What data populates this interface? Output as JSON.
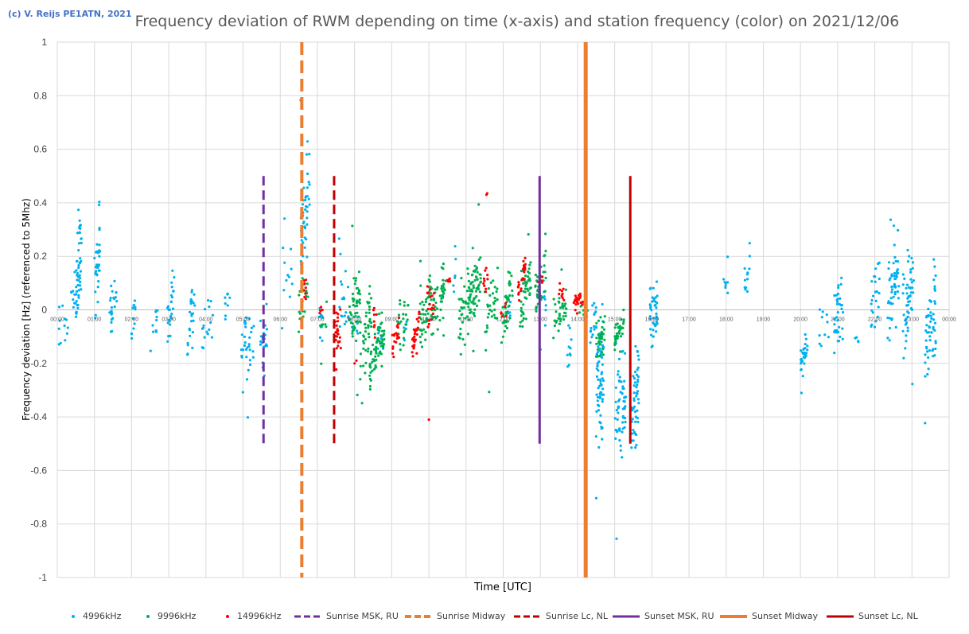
{
  "credit": "(c) V. Reijs  PE1ATN, 2021",
  "chart_data": {
    "type": "scatter",
    "title": "Frequency deviation of RWM depending on time (x-axis) and station frequency (color) on 2021/12/06",
    "xlabel": "Time [UTC]",
    "ylabel": "Frequency deviation [Hz] (referenced to 5Mhz)",
    "xlim": [
      0,
      24
    ],
    "ylim": [
      -1,
      1
    ],
    "x_ticks": [
      "00:00",
      "01:00",
      "02:00",
      "03:00",
      "04:00",
      "05:00",
      "06:00",
      "07:00",
      "08:00",
      "09:00",
      "10:00",
      "11:00",
      "12:00",
      "13:00",
      "14:00",
      "15:00",
      "16:00",
      "17:00",
      "18:00",
      "19:00",
      "20:00",
      "21:00",
      "22:00",
      "23:00",
      "00:00"
    ],
    "y_ticks": [
      "-1",
      "-0.8",
      "-0.6",
      "-0.4",
      "-0.2",
      "0",
      "0.2",
      "0.4",
      "0.6",
      "0.8",
      "1"
    ],
    "y_tick_values": [
      -1,
      -0.8,
      -0.6,
      -0.4,
      -0.2,
      0,
      0.2,
      0.4,
      0.6,
      0.8,
      1
    ],
    "grid": true,
    "legend_position": "bottom",
    "series": [
      {
        "name": "4996kHz",
        "color": "#00b0f0",
        "kind": "points",
        "clusters": [
          [
            0.0,
            0.6,
            0.0,
            0.1,
            24,
            0.08
          ],
          [
            0.5,
            0.65,
            0.15,
            0.15,
            48,
            0.09
          ],
          [
            1.0,
            1.15,
            0.15,
            0.15,
            36,
            0.09
          ],
          [
            1.4,
            1.6,
            0.02,
            0.08,
            22,
            0.05
          ],
          [
            2.0,
            2.1,
            -0.03,
            0.06,
            12,
            0.05
          ],
          [
            2.5,
            2.7,
            -0.06,
            0.06,
            10,
            0.03
          ],
          [
            2.95,
            3.15,
            0.0,
            0.12,
            26,
            0.12
          ],
          [
            3.5,
            3.7,
            -0.03,
            0.1,
            24,
            0.12
          ],
          [
            3.9,
            4.2,
            -0.05,
            0.07,
            16,
            0.05
          ],
          [
            4.5,
            4.65,
            0.02,
            0.05,
            8,
            0.03
          ],
          [
            4.95,
            5.3,
            -0.12,
            0.1,
            34,
            0.0
          ],
          [
            5.45,
            5.65,
            -0.1,
            0.1,
            22,
            0.0
          ],
          [
            6.05,
            6.35,
            0.15,
            0.15,
            12,
            0.0
          ],
          [
            6.55,
            6.8,
            0.35,
            0.2,
            48,
            0.12
          ],
          [
            7.05,
            7.15,
            -0.05,
            0.1,
            10,
            0.0
          ],
          [
            7.55,
            7.85,
            0.0,
            0.15,
            20,
            0.02
          ],
          [
            7.9,
            8.1,
            -0.08,
            0.05,
            6,
            0.0
          ],
          [
            8.6,
            8.9,
            -0.12,
            0.06,
            8,
            0.0
          ],
          [
            9.3,
            9.4,
            -0.06,
            0.04,
            4,
            0.02
          ],
          [
            10.6,
            10.75,
            0.1,
            0.15,
            6,
            0.08
          ],
          [
            12.1,
            12.2,
            0.0,
            0.05,
            6,
            0.0
          ],
          [
            13.0,
            13.15,
            0.0,
            0.12,
            8,
            0.0
          ],
          [
            13.7,
            13.85,
            -0.12,
            0.1,
            10,
            0.0
          ],
          [
            14.3,
            14.5,
            -0.05,
            0.1,
            14,
            0.02
          ],
          [
            14.5,
            14.7,
            -0.25,
            0.22,
            70,
            0.04
          ],
          [
            15.0,
            15.3,
            -0.35,
            0.2,
            58,
            0.05
          ],
          [
            15.45,
            15.65,
            -0.35,
            0.2,
            50,
            0.04
          ],
          [
            15.95,
            16.15,
            0.0,
            0.12,
            40,
            0.0
          ],
          [
            17.9,
            18.05,
            0.1,
            0.03,
            8,
            0.0
          ],
          [
            18.5,
            18.65,
            0.15,
            0.1,
            12,
            0.04
          ],
          [
            20.0,
            20.2,
            -0.17,
            0.07,
            30,
            0.03
          ],
          [
            20.5,
            20.9,
            -0.06,
            0.1,
            10,
            0.0
          ],
          [
            20.9,
            21.15,
            0.0,
            0.12,
            36,
            0.04
          ],
          [
            21.4,
            21.6,
            -0.1,
            0.04,
            4,
            0.0
          ],
          [
            21.9,
            22.15,
            0.05,
            0.15,
            24,
            0.03
          ],
          [
            22.35,
            22.65,
            0.1,
            0.15,
            52,
            0.09
          ],
          [
            22.75,
            23.05,
            0.05,
            0.15,
            52,
            0.07
          ],
          [
            23.35,
            23.65,
            -0.05,
            0.18,
            56,
            0.07
          ]
        ]
      },
      {
        "name": "9996kHz",
        "color": "#00b050",
        "kind": "points",
        "clusters": [
          [
            6.5,
            6.75,
            0.03,
            0.07,
            22,
            0.04
          ],
          [
            7.05,
            7.25,
            -0.05,
            0.08,
            8,
            0.0
          ],
          [
            7.85,
            8.15,
            -0.01,
            0.12,
            50,
            0.06
          ],
          [
            8.15,
            8.45,
            -0.08,
            0.1,
            44,
            0.07
          ],
          [
            8.4,
            8.8,
            -0.15,
            0.08,
            66,
            0.08
          ],
          [
            9.15,
            9.45,
            -0.05,
            0.12,
            26,
            0.05
          ],
          [
            9.75,
            10.05,
            0.0,
            0.1,
            46,
            0.06
          ],
          [
            10.05,
            10.45,
            0.03,
            0.1,
            50,
            0.07
          ],
          [
            10.8,
            11.1,
            0.02,
            0.1,
            34,
            0.07
          ],
          [
            11.05,
            11.4,
            0.08,
            0.12,
            70,
            0.08
          ],
          [
            11.5,
            11.85,
            0.0,
            0.12,
            34,
            0.06
          ],
          [
            11.95,
            12.25,
            0.02,
            0.1,
            40,
            0.06
          ],
          [
            12.45,
            12.75,
            0.06,
            0.1,
            46,
            0.06
          ],
          [
            12.85,
            13.15,
            0.1,
            0.08,
            42,
            0.05
          ],
          [
            13.35,
            13.7,
            0.0,
            0.08,
            36,
            0.04
          ],
          [
            14.05,
            14.3,
            0.0,
            0.04,
            8,
            0.0
          ],
          [
            14.5,
            14.75,
            -0.1,
            0.08,
            34,
            0.02
          ],
          [
            15.0,
            15.25,
            -0.07,
            0.07,
            34,
            0.03
          ]
        ]
      },
      {
        "name": "14996kHz",
        "color": "#ff0000",
        "kind": "points",
        "clusters": [
          [
            6.6,
            6.7,
            0.06,
            0.05,
            8,
            0.0
          ],
          [
            7.05,
            7.15,
            0.0,
            0.03,
            4,
            0.0
          ],
          [
            7.45,
            7.65,
            -0.08,
            0.1,
            24,
            0.04
          ],
          [
            8.5,
            8.6,
            -0.06,
            0.06,
            8,
            0.0
          ],
          [
            9.0,
            9.2,
            -0.1,
            0.05,
            18,
            0.03
          ],
          [
            9.55,
            9.75,
            -0.08,
            0.06,
            28,
            0.04
          ],
          [
            9.95,
            10.15,
            0.02,
            0.07,
            18,
            0.04
          ],
          [
            10.5,
            10.6,
            0.12,
            0.02,
            6,
            0.0
          ],
          [
            11.45,
            11.6,
            0.12,
            0.06,
            10,
            0.03
          ],
          [
            11.9,
            12.1,
            0.0,
            0.03,
            6,
            0.0
          ],
          [
            12.4,
            12.6,
            0.12,
            0.05,
            26,
            0.05
          ],
          [
            12.9,
            13.05,
            0.12,
            0.02,
            6,
            0.0
          ],
          [
            13.5,
            13.65,
            0.07,
            0.03,
            10,
            0.0
          ],
          [
            13.9,
            14.15,
            0.03,
            0.03,
            24,
            0.0
          ]
        ],
        "extra_points": [
          [
            11.55,
            0.43
          ],
          [
            11.57,
            0.435
          ],
          [
            10.0,
            -0.41
          ],
          [
            8.0,
            -0.2
          ],
          [
            8.05,
            -0.19
          ]
        ]
      }
    ],
    "reference_lines": [
      {
        "name": "Sunrise MSK, RU",
        "x": 5.55,
        "y_range": [
          -0.5,
          0.5
        ],
        "color": "#7030a0",
        "style": "dashed",
        "width": 3
      },
      {
        "name": "Sunrise Midway",
        "x": 6.58,
        "y_range": [
          -1,
          1
        ],
        "color": "#ed7d31",
        "style": "dashed",
        "width": 4
      },
      {
        "name": "Sunrise Lc, NL",
        "x": 7.45,
        "y_range": [
          -0.5,
          0.5
        ],
        "color": "#c00000",
        "style": "dashed",
        "width": 3
      },
      {
        "name": "Sunset MSK, RU",
        "x": 12.98,
        "y_range": [
          -0.5,
          0.5
        ],
        "color": "#7030a0",
        "style": "solid",
        "width": 3
      },
      {
        "name": "Sunset Midway",
        "x": 14.22,
        "y_range": [
          -1,
          1
        ],
        "color": "#ed7d31",
        "style": "solid",
        "width": 5
      },
      {
        "name": "Sunset Lc, NL",
        "x": 15.42,
        "y_range": [
          -0.5,
          0.5
        ],
        "color": "#c00000",
        "style": "solid",
        "width": 3
      }
    ]
  }
}
